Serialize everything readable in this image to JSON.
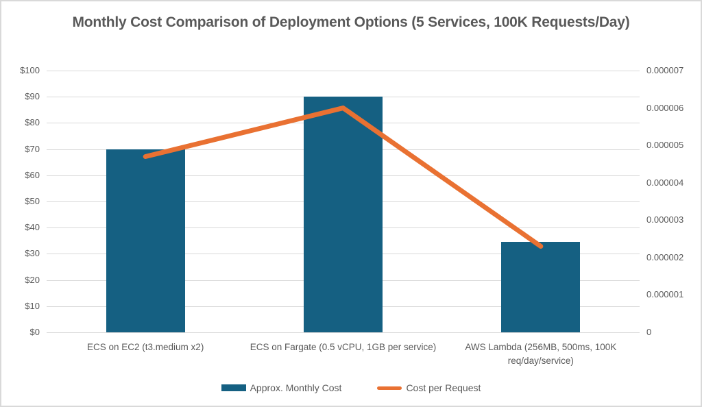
{
  "chart_data": {
    "type": "combo-bar-line",
    "title": "Monthly Cost Comparison of Deployment Options (5 Services, 100K Requests/Day)",
    "categories": [
      "ECS on EC2 (t3.medium x2)",
      "ECS on Fargate (0.5 vCPU, 1GB per service)",
      "AWS Lambda (256MB, 500ms, 100K req/day/service)"
    ],
    "series": [
      {
        "name": "Approx. Monthly Cost",
        "type": "bar",
        "axis": "left",
        "color": "#156082",
        "values": [
          70,
          90,
          34.6
        ]
      },
      {
        "name": "Cost per Request",
        "type": "line",
        "axis": "right",
        "color": "#E97132",
        "values": [
          4.7e-06,
          6e-06,
          2.3e-06
        ]
      }
    ],
    "left_axis": {
      "min": 0,
      "max": 100,
      "step": 10,
      "tick_labels": [
        "$0",
        "$10",
        "$20",
        "$30",
        "$40",
        "$50",
        "$60",
        "$70",
        "$80",
        "$90",
        "$100"
      ]
    },
    "right_axis": {
      "min": 0,
      "max": 7e-06,
      "step": 1e-06,
      "tick_labels": [
        "0",
        "0.000001",
        "0.000002",
        "0.000003",
        "0.000004",
        "0.000005",
        "0.000006",
        "0.000007"
      ]
    },
    "grid": true,
    "legend_position": "bottom"
  },
  "colors": {
    "background": "#FFFFFF",
    "border": "#D9D9D9",
    "gridline": "#D9D9D9",
    "axis_text": "#595959",
    "title_text": "#595959"
  }
}
